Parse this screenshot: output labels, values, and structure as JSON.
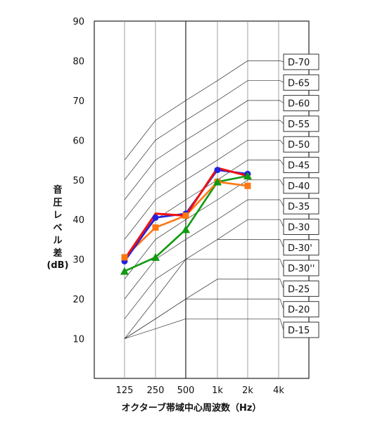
{
  "chart_data": {
    "type": "line",
    "xlabel": "オクターブ帯域中心周波数（Hz）",
    "ylabel_lines": [
      "音",
      "圧",
      "レ",
      "ベ",
      "ル",
      "差",
      "(dB)"
    ],
    "x_ticks": [
      "125",
      "250",
      "500",
      "1k",
      "2k",
      "4k"
    ],
    "y_ticks": [
      10,
      20,
      30,
      40,
      50,
      60,
      70,
      80,
      90
    ],
    "ylim": [
      0,
      90
    ],
    "grid": "vertical",
    "reference_curves": [
      {
        "label": "D-70",
        "values": [
          55,
          65,
          70,
          75,
          80
        ]
      },
      {
        "label": "D-65",
        "values": [
          50,
          60,
          65,
          70,
          75
        ]
      },
      {
        "label": "D-60",
        "values": [
          45,
          55,
          60,
          65,
          70
        ]
      },
      {
        "label": "D-55",
        "values": [
          40,
          50,
          55,
          60,
          65
        ]
      },
      {
        "label": "D-50",
        "values": [
          35,
          45,
          50,
          55,
          60
        ]
      },
      {
        "label": "D-45",
        "values": [
          30,
          40,
          45,
          50,
          55
        ]
      },
      {
        "label": "D-40",
        "values": [
          25,
          35,
          40,
          45,
          50
        ]
      },
      {
        "label": "D-35",
        "values": [
          20,
          30,
          35,
          40,
          45
        ]
      },
      {
        "label": "D-30",
        "values": [
          15,
          25,
          30,
          35,
          40
        ]
      },
      {
        "label": "D-30'",
        "values": [
          null,
          null,
          null,
          35,
          35
        ]
      },
      {
        "label": "D-30''",
        "values": [
          10,
          20,
          30,
          30,
          30
        ]
      },
      {
        "label": "D-25",
        "values": [
          10,
          15,
          20,
          25,
          25
        ]
      },
      {
        "label": "D-20",
        "values": [
          10,
          15,
          20,
          20,
          20
        ]
      },
      {
        "label": "D-15",
        "values": [
          10,
          12.5,
          15,
          15,
          15
        ]
      }
    ],
    "series": [
      {
        "color": "#2222dd",
        "marker": "circle",
        "values": [
          29.5,
          40.5,
          41.5,
          52.5,
          51.5
        ]
      },
      {
        "color": "#ff7711",
        "marker": "square",
        "values": [
          30.5,
          38,
          41,
          49.5,
          48.5
        ]
      },
      {
        "color": "#119911",
        "marker": "triangle",
        "values": [
          27,
          30.5,
          37.5,
          49.5,
          51
        ]
      },
      {
        "color": "#ee1111",
        "marker": "none",
        "values": [
          30,
          41.5,
          41,
          53,
          51
        ]
      }
    ]
  }
}
